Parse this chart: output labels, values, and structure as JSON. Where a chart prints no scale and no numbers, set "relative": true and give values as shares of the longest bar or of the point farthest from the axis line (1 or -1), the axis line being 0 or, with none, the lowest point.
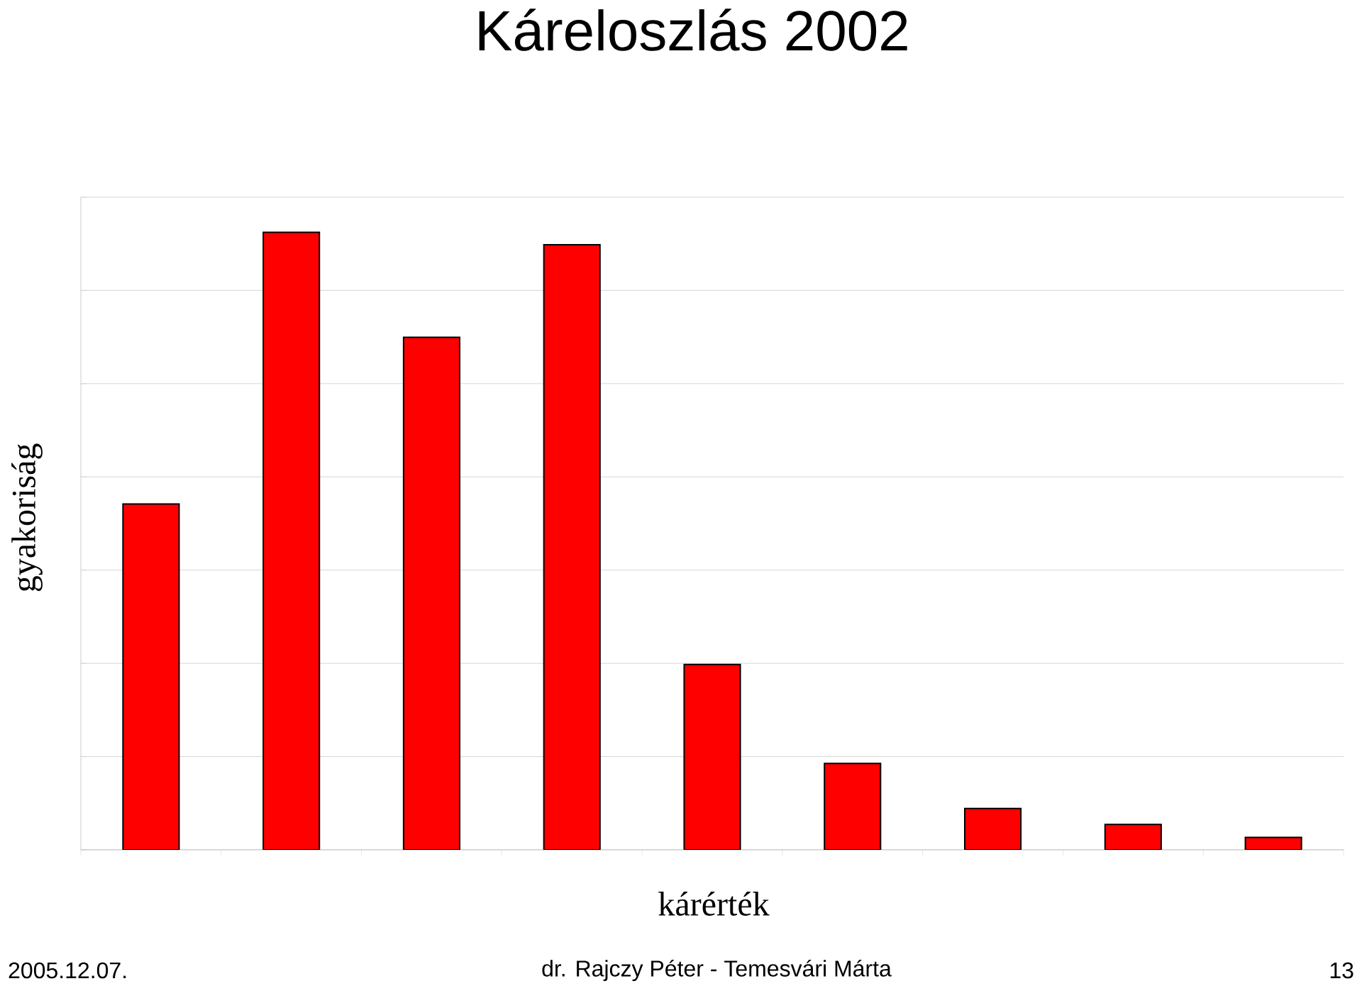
{
  "chart_data": {
    "type": "bar",
    "title": "Káreloszlás 2002",
    "xlabel": "kárérték",
    "ylabel": "gyakoriság",
    "categories": [
      null,
      null,
      null,
      null,
      null,
      null,
      null,
      null,
      null
    ],
    "values": [
      0.56,
      1,
      0.83,
      0.98,
      0.3,
      0.14,
      0.067,
      0.041,
      0.02
    ],
    "color": "#ff0000",
    "relative": true,
    "grid": "y",
    "annotations": [
      "2005.12.07.",
      "dr. Rajczy Péter - Temesvári Márta",
      "13"
    ]
  }
}
